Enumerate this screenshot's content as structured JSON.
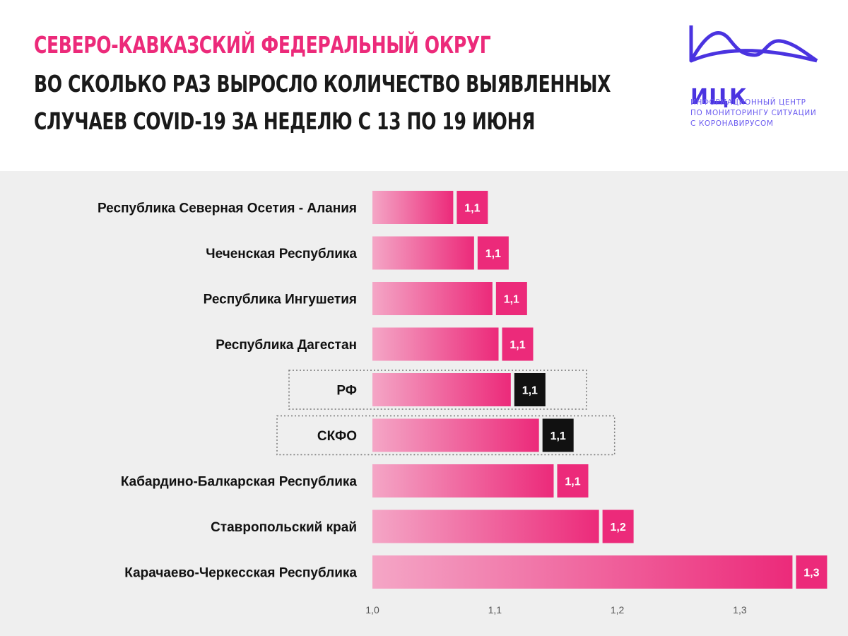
{
  "header": {
    "title_line1": "СЕВЕРО-КАВКАЗСКИЙ ФЕДЕРАЛЬНЫЙ ОКРУГ",
    "title_line2": "ВО СКОЛЬКО РАЗ ВЫРОСЛО КОЛИЧЕСТВО ВЫЯВЛЕННЫХ",
    "title_line3": "СЛУЧАЕВ COVID-19 ЗА НЕДЕЛЮ С 13 ПО 19 ИЮНЯ"
  },
  "logo": {
    "abbr": "ИЦК",
    "line1": "ИНФОРМАЦИОННЫЙ ЦЕНТР",
    "line2": "ПО МОНИТОРИНГУ СИТУАЦИИ",
    "line3": "С КОРОНАВИРУСОМ"
  },
  "colors": {
    "accent": "#ec2a7a",
    "bar_light": "#f4a6c6",
    "highlight_label": "#111111",
    "logo": "#4a33e0"
  },
  "chart_data": {
    "type": "bar",
    "orientation": "horizontal",
    "categories": [
      "Республика Северная Осетия - Алания",
      "Чеченская Республика",
      "Республика Ингушетия",
      "Республика Дагестан",
      "РФ",
      "СКФО",
      "Кабардино-Балкарская Республика",
      "Ставропольский край",
      "Карачаево-Черкесская Республика"
    ],
    "values": [
      1.066,
      1.083,
      1.098,
      1.103,
      1.113,
      1.136,
      1.148,
      1.185,
      1.343
    ],
    "data_labels": [
      "1,1",
      "1,1",
      "1,1",
      "1,1",
      "1,1",
      "1,1",
      "1,1",
      "1,2",
      "1,3"
    ],
    "highlighted": [
      "РФ",
      "СКФО"
    ],
    "xlim": [
      1.0,
      1.3667
    ],
    "xticks": [
      1.0,
      1.1,
      1.2,
      1.3
    ],
    "xtick_labels": [
      "1,0",
      "1,1",
      "1,2",
      "1,3"
    ],
    "grid": false,
    "legend": "none"
  }
}
